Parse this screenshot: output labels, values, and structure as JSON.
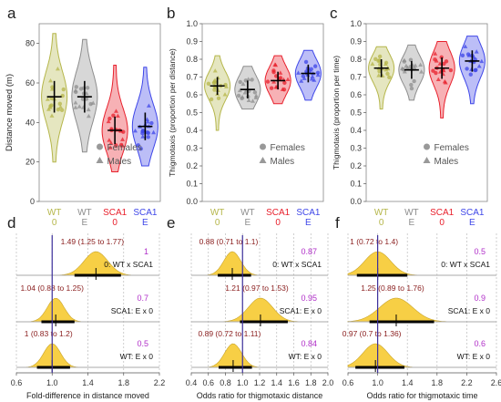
{
  "colors": {
    "WT0": "#b5b64a",
    "WTE": "#8d8d8d",
    "SCA10": "#e8202c",
    "SCA1E": "#3e46e8",
    "density_fill": "#f7cf45",
    "vline": "#3c2f9b"
  },
  "top_panels": [
    {
      "letter": "a",
      "ylabel": "Distance moved (m)",
      "yticks": [
        0,
        20,
        40,
        60,
        80
      ],
      "ylim": [
        0,
        90
      ],
      "groups": [
        {
          "top": "WT",
          "bottom": "0",
          "key": "WT0",
          "min": 20,
          "max": 85,
          "mean": 53,
          "sd": 8
        },
        {
          "top": "WT",
          "bottom": "E",
          "key": "WTE",
          "min": 25,
          "max": 82,
          "mean": 53,
          "sd": 8
        },
        {
          "top": "SCA1",
          "bottom": "0",
          "key": "SCA10",
          "min": 15,
          "max": 69,
          "mean": 36,
          "sd": 7
        },
        {
          "top": "SCA1",
          "bottom": "E",
          "key": "SCA1E",
          "min": 18,
          "max": 68,
          "mean": 38,
          "sd": 7
        }
      ]
    },
    {
      "letter": "b",
      "ylabel": "Thigmotaxis (proportion per distance)",
      "yticks": [
        "0.0",
        "0.1",
        "0.2",
        "0.3",
        "0.4",
        "0.5",
        "0.6",
        "0.7",
        "0.8",
        "0.9",
        "1.0"
      ],
      "ylim": [
        0,
        1.0
      ],
      "groups": [
        {
          "top": "WT",
          "bottom": "0",
          "key": "WT0",
          "min": 0.4,
          "max": 0.82,
          "mean": 0.65,
          "sd": 0.05
        },
        {
          "top": "WT",
          "bottom": "E",
          "key": "WTE",
          "min": 0.52,
          "max": 0.76,
          "mean": 0.63,
          "sd": 0.05
        },
        {
          "top": "SCA1",
          "bottom": "0",
          "key": "SCA10",
          "min": 0.55,
          "max": 0.82,
          "mean": 0.68,
          "sd": 0.05
        },
        {
          "top": "SCA1",
          "bottom": "E",
          "key": "SCA1E",
          "min": 0.57,
          "max": 0.85,
          "mean": 0.72,
          "sd": 0.05
        }
      ]
    },
    {
      "letter": "c",
      "ylabel": "Thigmotaxis (proportion per time)",
      "yticks": [
        "0.0",
        "0.1",
        "0.2",
        "0.3",
        "0.4",
        "0.5",
        "0.6",
        "0.7",
        "0.8",
        "0.9",
        "1.0"
      ],
      "ylim": [
        0,
        1.0
      ],
      "groups": [
        {
          "top": "WT",
          "bottom": "0",
          "key": "WT0",
          "min": 0.52,
          "max": 0.87,
          "mean": 0.75,
          "sd": 0.05
        },
        {
          "top": "WT",
          "bottom": "E",
          "key": "WTE",
          "min": 0.57,
          "max": 0.88,
          "mean": 0.74,
          "sd": 0.05
        },
        {
          "top": "SCA1",
          "bottom": "0",
          "key": "SCA10",
          "min": 0.47,
          "max": 0.9,
          "mean": 0.75,
          "sd": 0.06
        },
        {
          "top": "SCA1",
          "bottom": "E",
          "key": "SCA1E",
          "min": 0.55,
          "max": 0.93,
          "mean": 0.79,
          "sd": 0.06
        }
      ]
    }
  ],
  "legend": {
    "females": "Females",
    "males": "Males"
  },
  "bottom_panels": [
    {
      "letter": "d",
      "xlabel": "Fold-difference in distance moved",
      "xticks": [
        "0.6",
        "1.0",
        "1.4",
        "1.8",
        "2.2"
      ],
      "xlim": [
        0.6,
        2.2
      ],
      "rows": [
        {
          "estimate": "1.49 (1.25 to 1.77)",
          "center": 1.49,
          "lo": 1.25,
          "hi": 1.77,
          "prob": "1",
          "comparison": "0: WT x SCA1"
        },
        {
          "estimate": "1.04 (0.88 to 1.25)",
          "center": 1.04,
          "lo": 0.88,
          "hi": 1.25,
          "prob": "0.7",
          "comparison": "SCA1: E x 0"
        },
        {
          "estimate": "1 (0.83 to 1.2)",
          "center": 1.0,
          "lo": 0.83,
          "hi": 1.2,
          "prob": "0.5",
          "comparison": "WT: E x 0"
        }
      ]
    },
    {
      "letter": "e",
      "xlabel": "Odds ratio for thigmotaxic distance",
      "xticks": [
        "0.4",
        "0.6",
        "0.8",
        "1.0",
        "1.2",
        "1.4",
        "1.6",
        "1.8",
        "2.0"
      ],
      "xlim": [
        0.4,
        2.0
      ],
      "rows": [
        {
          "estimate": "0.88 (0.71 to 1.1)",
          "center": 0.88,
          "lo": 0.71,
          "hi": 1.1,
          "prob": "0.87",
          "comparison": "0: WT x SCA1"
        },
        {
          "estimate": "1.21 (0.97 to 1.53)",
          "center": 1.21,
          "lo": 0.97,
          "hi": 1.53,
          "prob": "0.95",
          "comparison": "SCA1: E x 0"
        },
        {
          "estimate": "0.89 (0.72 to 1.11)",
          "center": 0.89,
          "lo": 0.72,
          "hi": 1.11,
          "prob": "0.84",
          "comparison": "WT: E x 0"
        }
      ]
    },
    {
      "letter": "f",
      "xlabel": "Odds ratio for thigmotaxic time",
      "xticks": [
        "0.6",
        "1.0",
        "1.4",
        "1.8",
        "2.2",
        "2.6"
      ],
      "xlim": [
        0.6,
        2.6
      ],
      "rows": [
        {
          "estimate": "1 (0.72 to 1.4)",
          "center": 1.0,
          "lo": 0.72,
          "hi": 1.4,
          "prob": "0.5",
          "comparison": "0: WT x SCA1"
        },
        {
          "estimate": "1.25 (0.89 to 1.76)",
          "center": 1.25,
          "lo": 0.89,
          "hi": 1.76,
          "prob": "0.9",
          "comparison": "SCA1: E x 0"
        },
        {
          "estimate": "0.97 (0.7 to 1.36)",
          "center": 0.97,
          "lo": 0.7,
          "hi": 1.36,
          "prob": "0.6",
          "comparison": "WT: E x 0"
        }
      ]
    }
  ],
  "chart_data": [
    {
      "type": "violin",
      "panel": "a",
      "ylabel": "Distance moved (m)",
      "ylim": [
        0,
        90
      ],
      "categories": [
        "WT 0",
        "WT E",
        "SCA1 0",
        "SCA1 E"
      ],
      "means": [
        53,
        53,
        36,
        38
      ]
    },
    {
      "type": "violin",
      "panel": "b",
      "ylabel": "Thigmotaxis (proportion per distance)",
      "ylim": [
        0,
        1.0
      ],
      "categories": [
        "WT 0",
        "WT E",
        "SCA1 0",
        "SCA1 E"
      ],
      "means": [
        0.65,
        0.63,
        0.68,
        0.72
      ]
    },
    {
      "type": "violin",
      "panel": "c",
      "ylabel": "Thigmotaxis (proportion per time)",
      "ylim": [
        0,
        1.0
      ],
      "categories": [
        "WT 0",
        "WT E",
        "SCA1 0",
        "SCA1 E"
      ],
      "means": [
        0.75,
        0.74,
        0.75,
        0.79
      ]
    },
    {
      "type": "forest",
      "panel": "d",
      "xlabel": "Fold-difference in distance moved",
      "xlim": [
        0.6,
        2.2
      ],
      "rows": [
        [
          "0: WT x SCA1",
          1.49,
          1.25,
          1.77
        ],
        [
          "SCA1: E x 0",
          1.04,
          0.88,
          1.25
        ],
        [
          "WT: E x 0",
          1.0,
          0.83,
          1.2
        ]
      ]
    },
    {
      "type": "forest",
      "panel": "e",
      "xlabel": "Odds ratio for thigmotaxic distance",
      "xlim": [
        0.4,
        2.0
      ],
      "rows": [
        [
          "0: WT x SCA1",
          0.88,
          0.71,
          1.1
        ],
        [
          "SCA1: E x 0",
          1.21,
          0.97,
          1.53
        ],
        [
          "WT: E x 0",
          0.89,
          0.72,
          1.11
        ]
      ]
    },
    {
      "type": "forest",
      "panel": "f",
      "xlabel": "Odds ratio for thigmotaxic time",
      "xlim": [
        0.6,
        2.6
      ],
      "rows": [
        [
          "0: WT x SCA1",
          1.0,
          0.72,
          1.4
        ],
        [
          "SCA1: E x 0",
          1.25,
          0.89,
          1.76
        ],
        [
          "WT: E x 0",
          0.97,
          0.7,
          1.36
        ]
      ]
    }
  ]
}
